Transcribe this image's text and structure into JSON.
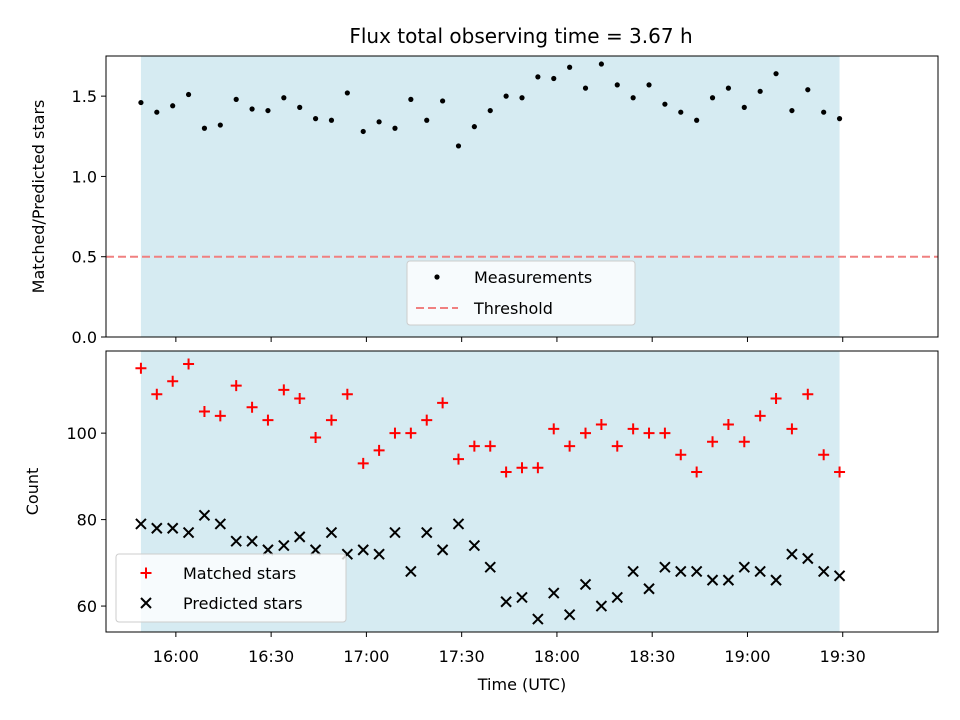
{
  "colors": {
    "span": "#add8e6",
    "measurement": "#000000",
    "threshold": "#f08080",
    "matched": "#ff0000",
    "predicted": "#000000"
  },
  "chart_data": [
    {
      "type": "scatter",
      "title": "Flux total observing time = 3.67 h",
      "ylabel": "Matched/Predicted stars",
      "ylim": [
        0,
        1.75
      ],
      "xlim": [
        "15:38",
        "20:00"
      ],
      "yticks": [
        0.0,
        0.5,
        1.0,
        1.5
      ],
      "ytick_labels": [
        "0.0",
        "0.5",
        "1.0",
        "1.5"
      ],
      "shaded_span": [
        "15:49",
        "19:29"
      ],
      "legend_position": "lower-center",
      "threshold": {
        "name": "Threshold",
        "value": 0.5
      },
      "series": [
        {
          "name": "Measurements",
          "x": [
            "15:49",
            "15:54",
            "15:59",
            "16:04",
            "16:09",
            "16:14",
            "16:19",
            "16:24",
            "16:29",
            "16:34",
            "16:39",
            "16:44",
            "16:49",
            "16:54",
            "16:59",
            "17:04",
            "17:09",
            "17:14",
            "17:19",
            "17:24",
            "17:29",
            "17:34",
            "17:39",
            "17:44",
            "17:49",
            "17:54",
            "17:59",
            "18:04",
            "18:09",
            "18:14",
            "18:19",
            "18:24",
            "18:29",
            "18:34",
            "18:39",
            "18:44",
            "18:49",
            "18:54",
            "18:59",
            "19:04",
            "19:09",
            "19:14",
            "19:19",
            "19:24",
            "19:29"
          ],
          "y": [
            1.46,
            1.4,
            1.44,
            1.51,
            1.3,
            1.32,
            1.48,
            1.42,
            1.41,
            1.49,
            1.43,
            1.36,
            1.35,
            1.52,
            1.28,
            1.34,
            1.3,
            1.48,
            1.35,
            1.47,
            1.19,
            1.31,
            1.41,
            1.5,
            1.49,
            1.62,
            1.61,
            1.68,
            1.55,
            1.7,
            1.57,
            1.49,
            1.57,
            1.45,
            1.4,
            1.35,
            1.49,
            1.55,
            1.43,
            1.53,
            1.64,
            1.41,
            1.54,
            1.4,
            1.36
          ]
        }
      ]
    },
    {
      "type": "scatter",
      "xlabel": "Time (UTC)",
      "ylabel": "Count",
      "ylim": [
        54,
        119
      ],
      "xlim": [
        "15:38",
        "20:00"
      ],
      "yticks": [
        60,
        80,
        100
      ],
      "ytick_labels": [
        "60",
        "80",
        "100"
      ],
      "xticks": [
        "16:00",
        "16:30",
        "17:00",
        "17:30",
        "18:00",
        "18:30",
        "19:00",
        "19:30"
      ],
      "xtick_labels": [
        "16:00",
        "16:30",
        "17:00",
        "17:30",
        "18:00",
        "18:30",
        "19:00",
        "19:30"
      ],
      "shaded_span": [
        "15:49",
        "19:29"
      ],
      "legend_position": "lower-left",
      "series": [
        {
          "name": "Matched stars",
          "marker": "+",
          "x": [
            "15:49",
            "15:54",
            "15:59",
            "16:04",
            "16:09",
            "16:14",
            "16:19",
            "16:24",
            "16:29",
            "16:34",
            "16:39",
            "16:44",
            "16:49",
            "16:54",
            "16:59",
            "17:04",
            "17:09",
            "17:14",
            "17:19",
            "17:24",
            "17:29",
            "17:34",
            "17:39",
            "17:44",
            "17:49",
            "17:54",
            "17:59",
            "18:04",
            "18:09",
            "18:14",
            "18:19",
            "18:24",
            "18:29",
            "18:34",
            "18:39",
            "18:44",
            "18:49",
            "18:54",
            "18:59",
            "19:04",
            "19:09",
            "19:14",
            "19:19",
            "19:24",
            "19:29"
          ],
          "y": [
            115,
            109,
            112,
            116,
            105,
            104,
            111,
            106,
            103,
            110,
            108,
            99,
            103,
            109,
            93,
            96,
            100,
            100,
            103,
            107,
            94,
            97,
            97,
            91,
            92,
            92,
            101,
            97,
            100,
            102,
            97,
            101,
            100,
            100,
            95,
            91,
            98,
            102,
            98,
            104,
            108,
            101,
            109,
            95,
            91
          ]
        },
        {
          "name": "Predicted stars",
          "marker": "x",
          "x": [
            "15:49",
            "15:54",
            "15:59",
            "16:04",
            "16:09",
            "16:14",
            "16:19",
            "16:24",
            "16:29",
            "16:34",
            "16:39",
            "16:44",
            "16:49",
            "16:54",
            "16:59",
            "17:04",
            "17:09",
            "17:14",
            "17:19",
            "17:24",
            "17:29",
            "17:34",
            "17:39",
            "17:44",
            "17:49",
            "17:54",
            "17:59",
            "18:04",
            "18:09",
            "18:14",
            "18:19",
            "18:24",
            "18:29",
            "18:34",
            "18:39",
            "18:44",
            "18:49",
            "18:54",
            "18:59",
            "19:04",
            "19:09",
            "19:14",
            "19:19",
            "19:24",
            "19:29"
          ],
          "y": [
            79,
            78,
            78,
            77,
            81,
            79,
            75,
            75,
            73,
            74,
            76,
            73,
            77,
            72,
            73,
            72,
            77,
            68,
            77,
            73,
            79,
            74,
            69,
            61,
            62,
            57,
            63,
            58,
            65,
            60,
            62,
            68,
            64,
            69,
            68,
            68,
            66,
            66,
            69,
            68,
            66,
            72,
            71,
            68,
            67
          ]
        }
      ]
    }
  ]
}
